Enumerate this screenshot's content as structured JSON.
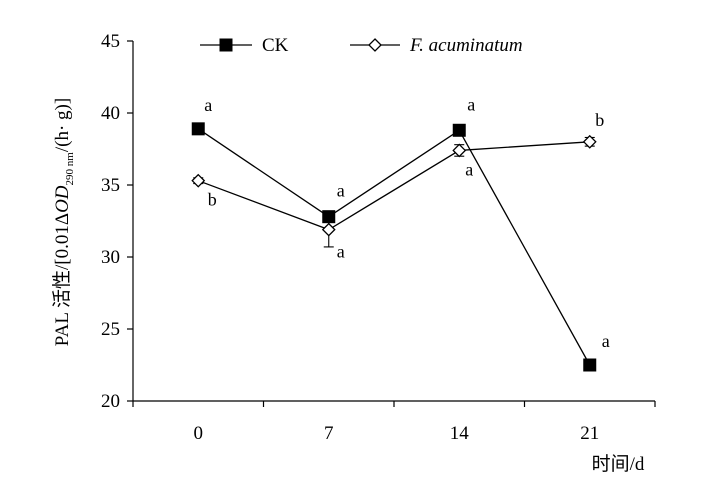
{
  "chart_data": {
    "type": "line",
    "xlabel": "时间/d",
    "ylabel": {
      "prefix": "PAL 活性/[0.01",
      "delta": "Δ",
      "od": "OD",
      "sub": "290 nm",
      "suffix": "/(h· g)]"
    },
    "x_categories": [
      "0",
      "7",
      "14",
      "21"
    ],
    "ylim": [
      20,
      45
    ],
    "yticks": [
      "20",
      "25",
      "30",
      "35",
      "40",
      "45"
    ],
    "legend_position": "top",
    "grid": false,
    "series": [
      {
        "name": "CK",
        "marker": "filled-square",
        "values": [
          38.9,
          32.8,
          38.8,
          22.5
        ],
        "errors": [
          0.3,
          0.3,
          0.3,
          0.2
        ],
        "significance": [
          "a",
          "a",
          "a",
          "a"
        ]
      },
      {
        "name": "F. acuminatum",
        "marker": "open-diamond",
        "values": [
          35.3,
          31.9,
          37.4,
          38.0
        ],
        "errors": [
          0.2,
          1.2,
          0.4,
          0.3
        ],
        "significance": [
          "b",
          "a",
          "a",
          "b"
        ]
      }
    ]
  }
}
